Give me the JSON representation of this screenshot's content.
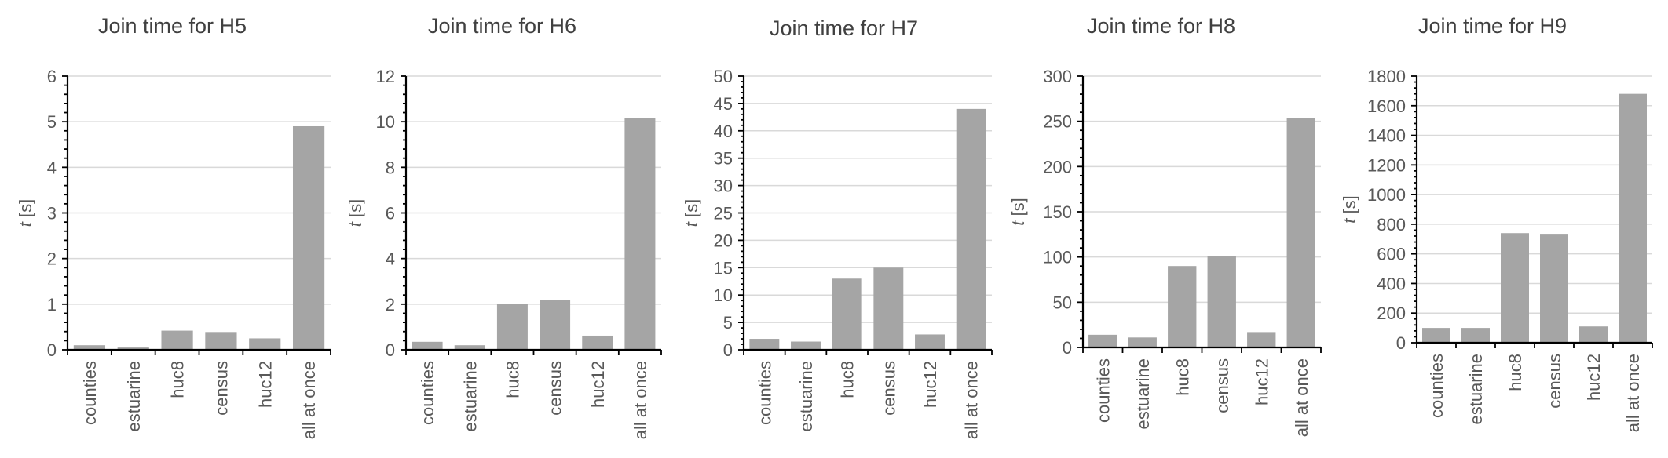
{
  "chart_data": [
    {
      "type": "bar",
      "title": "Join time for H5",
      "ylabel": "t [s]",
      "categories": [
        "counties",
        "estuarine",
        "huc8",
        "census",
        "huc12",
        "all at once"
      ],
      "values": [
        0.1,
        0.05,
        0.42,
        0.39,
        0.25,
        4.9
      ],
      "yticks": [
        "0",
        "1",
        "2",
        "3",
        "4",
        "5",
        "6"
      ],
      "ylim": [
        0,
        6
      ],
      "grid": true,
      "bar_color": "#a5a5a5"
    },
    {
      "type": "bar",
      "title": "Join time for H6",
      "ylabel": "t [s]",
      "categories": [
        "counties",
        "estuarine",
        "huc8",
        "census",
        "huc12",
        "all at once"
      ],
      "values": [
        0.35,
        0.2,
        2.02,
        2.2,
        0.62,
        10.15
      ],
      "yticks": [
        "0",
        "2",
        "4",
        "6",
        "8",
        "10",
        "12"
      ],
      "ylim": [
        0,
        12
      ],
      "grid": true,
      "bar_color": "#a5a5a5"
    },
    {
      "type": "bar",
      "title": "Join time for H7",
      "ylabel": "t [s]",
      "categories": [
        "counties",
        "estuarine",
        "huc8",
        "census",
        "huc12",
        "all at once"
      ],
      "values": [
        2.0,
        1.5,
        13.0,
        15.0,
        2.8,
        44.0
      ],
      "yticks": [
        "0",
        "5",
        "10",
        "15",
        "20",
        "25",
        "30",
        "35",
        "40",
        "45",
        "50"
      ],
      "ylim": [
        0,
        50
      ],
      "grid": true,
      "bar_color": "#a5a5a5"
    },
    {
      "type": "bar",
      "title": "Join time for H8",
      "ylabel": "t [s]",
      "categories": [
        "counties",
        "estuarine",
        "huc8",
        "census",
        "huc12",
        "all at once"
      ],
      "values": [
        14,
        11,
        90,
        101,
        17,
        254
      ],
      "yticks": [
        "0",
        "50",
        "100",
        "150",
        "200",
        "250",
        "300"
      ],
      "ylim": [
        0,
        300
      ],
      "grid": true,
      "bar_color": "#a5a5a5"
    },
    {
      "type": "bar",
      "title": "Join time for H9",
      "ylabel": "t [s]",
      "categories": [
        "counties",
        "estuarine",
        "huc8",
        "census",
        "huc12",
        "all at once"
      ],
      "values": [
        100,
        100,
        740,
        730,
        110,
        1680
      ],
      "yticks": [
        "0",
        "200",
        "400",
        "600",
        "800",
        "1000",
        "1200",
        "1400",
        "1600",
        "1800"
      ],
      "ylim": [
        0,
        1800
      ],
      "grid": true,
      "bar_color": "#a5a5a5"
    }
  ]
}
